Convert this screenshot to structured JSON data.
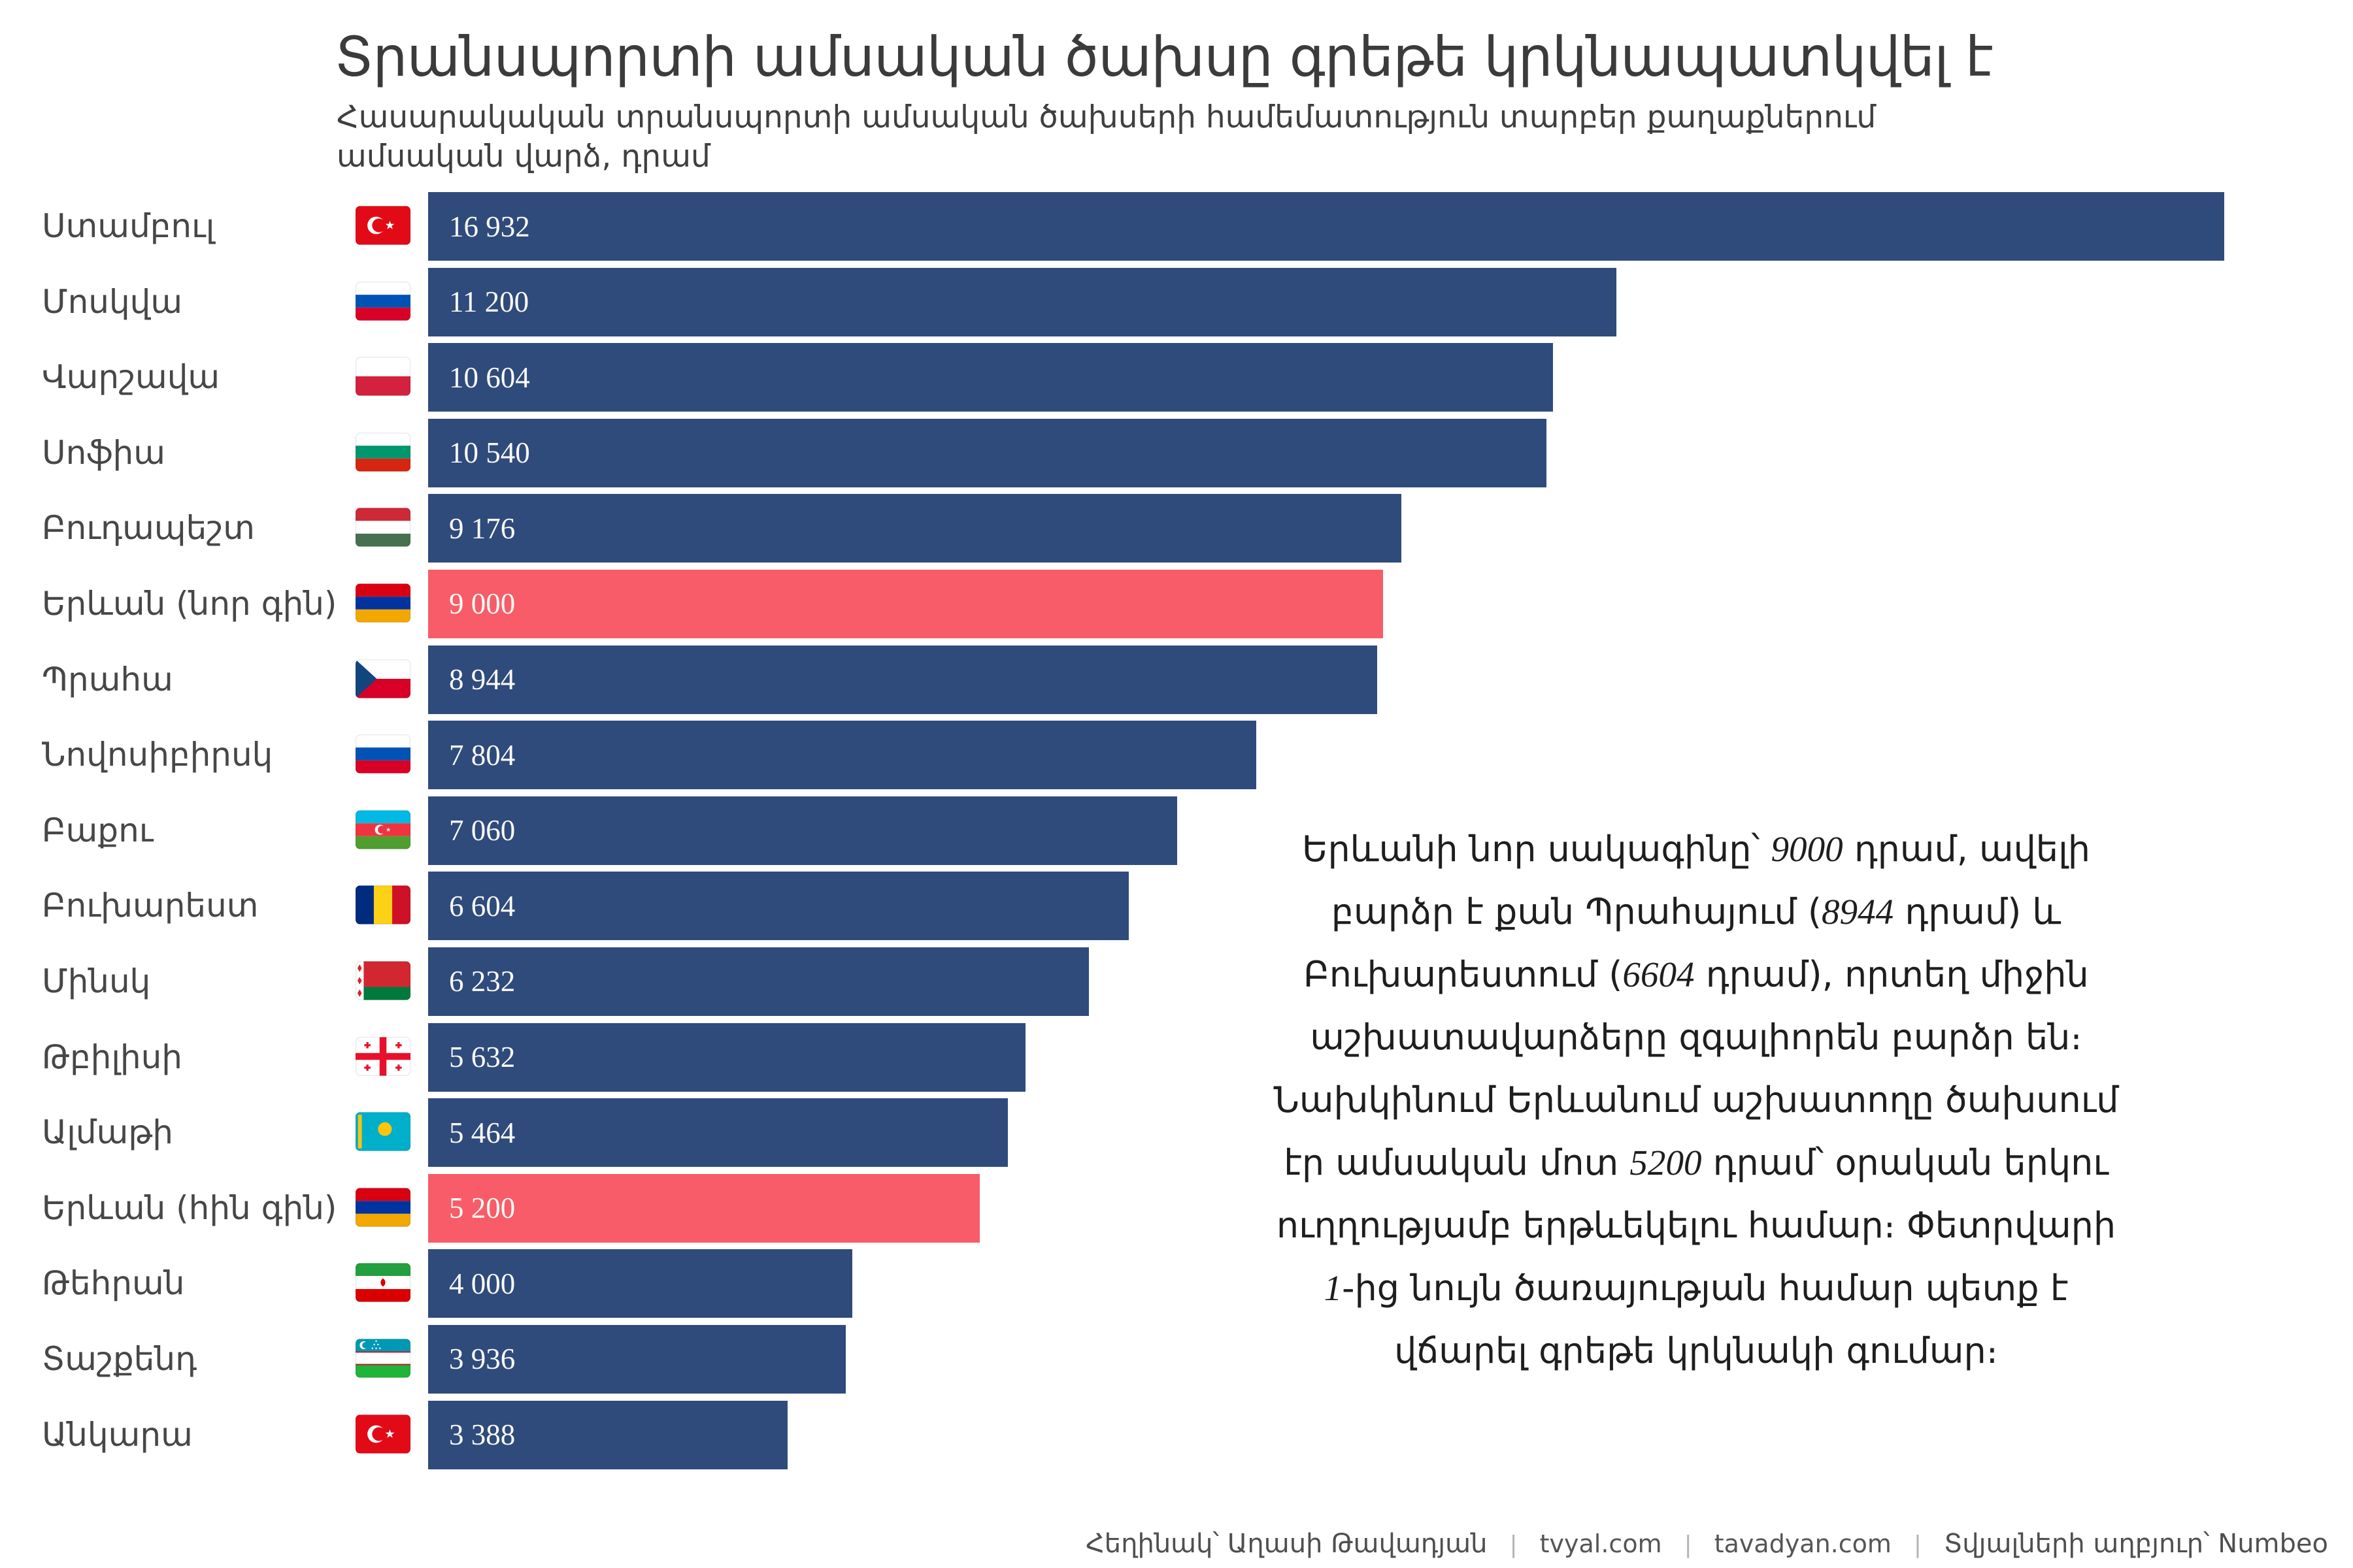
{
  "title": "Տրանսպորտի ամսական ծախսը գրեթե կրկնապատկվել է",
  "subtitle": {
    "line1": "Հասարակական տրանսպորտի ամսական ծախսերի համեմատություն տարբեր քաղաքներում",
    "line2": "ամսական վարձ, դրամ"
  },
  "chart_data": {
    "type": "bar",
    "orientation": "horizontal",
    "unit": "դրամ",
    "xlim": [
      0,
      16932
    ],
    "grid": false,
    "bar_color": "#2f4b7c",
    "highlight_color": "#f75c68",
    "value_text_color": "#fbfaf5",
    "rows": [
      {
        "city": "Ստամբուլ",
        "country": "turkey",
        "value": 16932,
        "label": "16 932",
        "highlight": false
      },
      {
        "city": "Մոսկվա",
        "country": "russia",
        "value": 11200,
        "label": "11 200",
        "highlight": false
      },
      {
        "city": "Վարշավա",
        "country": "poland",
        "value": 10604,
        "label": "10 604",
        "highlight": false
      },
      {
        "city": "Սոֆիա",
        "country": "bulgaria",
        "value": 10540,
        "label": "10 540",
        "highlight": false
      },
      {
        "city": "Բուդապեշտ",
        "country": "hungary",
        "value": 9176,
        "label": "9 176",
        "highlight": false
      },
      {
        "city": "Երևան (նոր գին)",
        "country": "armenia",
        "value": 9000,
        "label": "9 000",
        "highlight": true
      },
      {
        "city": "Պրահա",
        "country": "czechia",
        "value": 8944,
        "label": "8 944",
        "highlight": false
      },
      {
        "city": "Նովոսիբիրսկ",
        "country": "russia",
        "value": 7804,
        "label": "7 804",
        "highlight": false
      },
      {
        "city": "Բաքու",
        "country": "azerbaijan",
        "value": 7060,
        "label": "7 060",
        "highlight": false
      },
      {
        "city": "Բուխարեստ",
        "country": "romania",
        "value": 6604,
        "label": "6 604",
        "highlight": false
      },
      {
        "city": "Մինսկ",
        "country": "belarus",
        "value": 6232,
        "label": "6 232",
        "highlight": false
      },
      {
        "city": "Թբիլիսի",
        "country": "georgia",
        "value": 5632,
        "label": "5 632",
        "highlight": false
      },
      {
        "city": "Ալմաթի",
        "country": "kazakhstan",
        "value": 5464,
        "label": "5 464",
        "highlight": false
      },
      {
        "city": "Երևան (հին գին)",
        "country": "armenia",
        "value": 5200,
        "label": "5 200",
        "highlight": true
      },
      {
        "city": "Թեհրան",
        "country": "iran",
        "value": 4000,
        "label": "4 000",
        "highlight": false
      },
      {
        "city": "Տաշքենդ",
        "country": "uzbekistan",
        "value": 3936,
        "label": "3 936",
        "highlight": false
      },
      {
        "city": "Անկարա",
        "country": "turkey",
        "value": 3388,
        "label": "3 388",
        "highlight": false
      }
    ]
  },
  "annotation": {
    "lines": [
      "Երևանի նոր սակագինը՝ 9000 դրամ, ավելի",
      "բարձր է քան Պրահայում (8944 դրամ) և",
      "Բուխարեստում (6604 դրամ), որտեղ միջին",
      "աշխատավարձերը զգալիորեն բարձր են։",
      "Նախկինում Երևանում աշխատողը ծախսում",
      "էր ամսական մոտ 5200 դրամ՝ օրական երկու",
      "ուղղությամբ երթևեկելու համար։ Փետրվարի",
      "1-ից նույն ծառայության համար պետք է",
      "վճարել գրեթե կրկնակի գումար։"
    ]
  },
  "footer": {
    "author": "Հեղինակ՝ Աղասի Թավադյան",
    "separator": "|",
    "site1": "tvyal.com",
    "site2": "tavadyan.com",
    "source": "Տվյալների աղբյուր՝ Numbeo"
  }
}
